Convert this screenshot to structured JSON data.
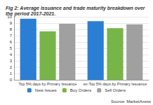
{
  "chart_data": {
    "type": "bar",
    "title": "Fig 2: Average issuance and trade maturity breakdown over the period 2017-2021.",
    "annotations": [
      "Source: MarketAxess"
    ],
    "categories": [
      "Top 5% days by Primary Issuance",
      "ex-Top 5% days by Primary Issuance"
    ],
    "series": [
      {
        "name": "New Issues",
        "color": "#2a7fd4",
        "values": [
          9.7,
          9.3
        ]
      },
      {
        "name": "Buy Orders",
        "color": "#78b548",
        "values": [
          7.7,
          8.2
        ]
      },
      {
        "name": "Sell Orders",
        "color": "#a0a0a0",
        "values": [
          8.9,
          8.8
        ]
      }
    ],
    "ylim": [
      0,
      10
    ],
    "yticks": [
      0,
      1,
      2,
      3,
      4,
      5,
      6,
      7,
      8,
      9,
      10
    ],
    "grid": true,
    "legend": "bottom"
  }
}
